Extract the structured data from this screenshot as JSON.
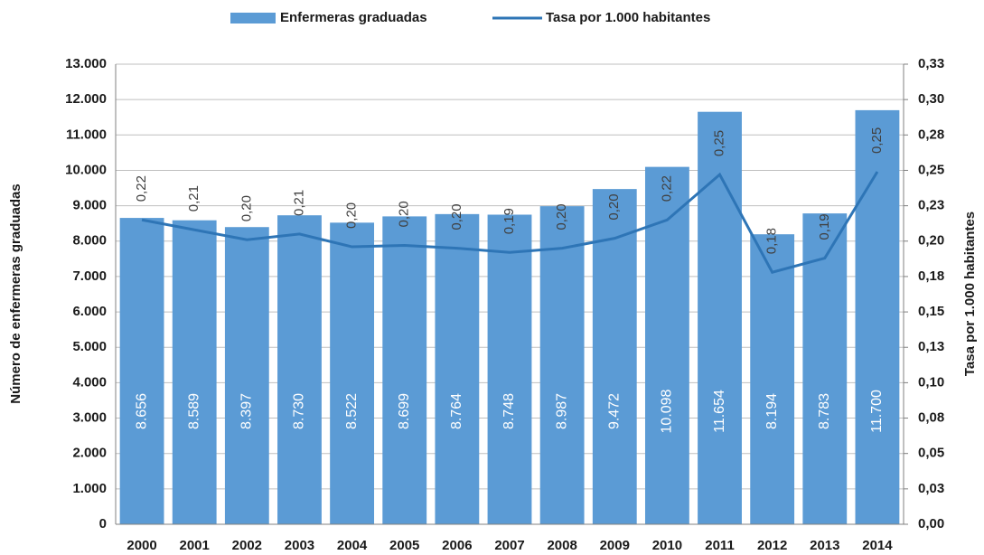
{
  "chart_data": {
    "type": "bar_line",
    "categories": [
      "2000",
      "2001",
      "2002",
      "2003",
      "2004",
      "2005",
      "2006",
      "2007",
      "2008",
      "2009",
      "2010",
      "2011",
      "2012",
      "2013",
      "2014"
    ],
    "ylabel": "Número de enfermeras graduadas",
    "y2label": "Tasa por 1.000 habitantes",
    "ylim": [
      0,
      13000
    ],
    "yticks": [
      0,
      {
        "value": 1000,
        "label": "1.000"
      },
      {
        "value": 2000,
        "label": "2.000"
      },
      {
        "value": 3000,
        "label": "3.000"
      },
      {
        "value": 4000,
        "label": "4.000"
      },
      {
        "value": 5000,
        "label": "5.000"
      },
      {
        "value": 6000,
        "label": "6.000"
      },
      {
        "value": 7000,
        "label": "7.000"
      },
      {
        "value": 8000,
        "label": "8.000"
      },
      {
        "value": 9000,
        "label": "9.000"
      },
      {
        "value": 10000,
        "label": "10.000"
      },
      {
        "value": 11000,
        "label": "11.000"
      },
      {
        "value": 12000,
        "label": "12.000"
      },
      {
        "value": 13000,
        "label": "13.000"
      }
    ],
    "y2lim": [
      0,
      0.325
    ],
    "y2ticks": [
      {
        "value": 0,
        "label": "0,00"
      },
      {
        "value": 0.025,
        "label": "0,03"
      },
      {
        "value": 0.05,
        "label": "0,05"
      },
      {
        "value": 0.075,
        "label": "0,08"
      },
      {
        "value": 0.1,
        "label": "0,10"
      },
      {
        "value": 0.125,
        "label": "0,13"
      },
      {
        "value": 0.15,
        "label": "0,15"
      },
      {
        "value": 0.175,
        "label": "0,18"
      },
      {
        "value": 0.2,
        "label": "0,20"
      },
      {
        "value": 0.225,
        "label": "0,23"
      },
      {
        "value": 0.25,
        "label": "0,25"
      },
      {
        "value": 0.275,
        "label": "0,28"
      },
      {
        "value": 0.3,
        "label": "0,30"
      },
      {
        "value": 0.325,
        "label": "0,33"
      }
    ],
    "grid": true,
    "legend": "top",
    "series": [
      {
        "name": "Enfermeras graduadas",
        "type": "bar",
        "color": "#5b9bd5",
        "values": [
          8656,
          8589,
          8397,
          8730,
          8522,
          8699,
          8764,
          8748,
          8987,
          9472,
          10098,
          11654,
          8194,
          8783,
          11700
        ],
        "value_labels": [
          "8.656",
          "8.589",
          "8.397",
          "8.730",
          "8.522",
          "8.699",
          "8.764",
          "8.748",
          "8.987",
          "9.472",
          "10.098",
          "11.654",
          "8.194",
          "8.783",
          "11.700"
        ]
      },
      {
        "name": "Tasa por 1.000 habitantes",
        "type": "line",
        "axis": "y2",
        "color": "#2e75b6",
        "values": [
          0.215,
          0.208,
          0.201,
          0.205,
          0.196,
          0.197,
          0.195,
          0.192,
          0.195,
          0.202,
          0.215,
          0.247,
          0.178,
          0.188,
          0.249
        ],
        "value_labels": [
          "0,22",
          "0,21",
          "0,20",
          "0,21",
          "0,20",
          "0,20",
          "0,20",
          "0,19",
          "0,20",
          "0,20",
          "0,22",
          "0,25",
          "0,18",
          "0,19",
          "0,25"
        ]
      }
    ]
  }
}
